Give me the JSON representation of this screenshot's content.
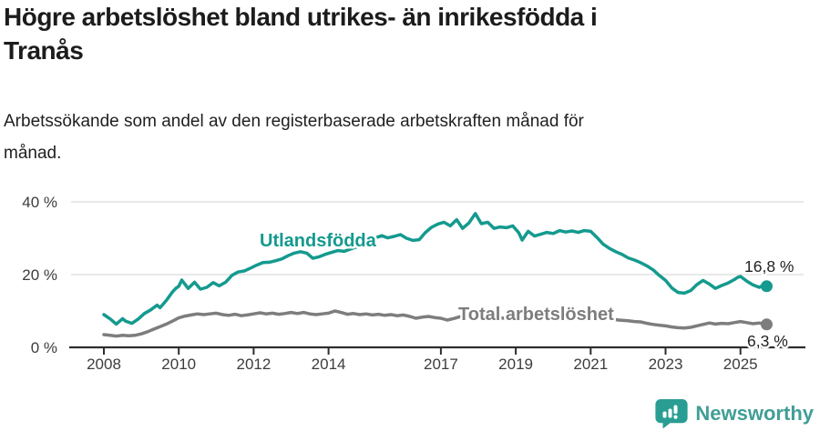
{
  "header": {
    "title": "Högre arbetslöshet bland utrikes- än inrikesfödda i\nTranås",
    "subtitle": "Arbetssökande som andel av den registerbaserade arbetskraften månad för\nmånad."
  },
  "chart_data": {
    "type": "line",
    "title": "Högre arbetslöshet bland utrikes- än inrikesfödda i Tranås",
    "subtitle": "Arbetssökande som andel av den registerbaserade arbetskraften månad för månad.",
    "unit": "%",
    "grid": "horizontal",
    "x_axis": {
      "ticks": [
        2008,
        2010,
        2012,
        2014,
        2017,
        2019,
        2021,
        2023,
        2025
      ],
      "range": [
        2007.1,
        2026.6
      ]
    },
    "y_axis": {
      "ticks": [
        {
          "value": 0,
          "label": "0 %"
        },
        {
          "value": 20,
          "label": "20 %"
        },
        {
          "value": 40,
          "label": "40 %"
        }
      ],
      "range": [
        0,
        44
      ]
    },
    "series": [
      {
        "name": "Utlandsfödda",
        "color": "#149a8e",
        "end_label": "16,8 %",
        "end_value": 16.8,
        "points": [
          [
            2008.0,
            9.0
          ],
          [
            2008.17,
            7.8
          ],
          [
            2008.33,
            6.4
          ],
          [
            2008.5,
            7.9
          ],
          [
            2008.58,
            7.2
          ],
          [
            2008.75,
            6.6
          ],
          [
            2008.92,
            7.8
          ],
          [
            2009.08,
            9.3
          ],
          [
            2009.25,
            10.3
          ],
          [
            2009.42,
            11.6
          ],
          [
            2009.5,
            10.9
          ],
          [
            2009.67,
            12.9
          ],
          [
            2009.83,
            15.2
          ],
          [
            2009.92,
            16.2
          ],
          [
            2010.0,
            16.8
          ],
          [
            2010.08,
            18.5
          ],
          [
            2010.25,
            16.2
          ],
          [
            2010.42,
            17.9
          ],
          [
            2010.58,
            16.0
          ],
          [
            2010.75,
            16.5
          ],
          [
            2010.92,
            17.8
          ],
          [
            2011.08,
            16.9
          ],
          [
            2011.25,
            17.9
          ],
          [
            2011.42,
            19.8
          ],
          [
            2011.58,
            20.7
          ],
          [
            2011.75,
            21.0
          ],
          [
            2011.92,
            21.8
          ],
          [
            2012.08,
            22.6
          ],
          [
            2012.25,
            23.3
          ],
          [
            2012.42,
            23.4
          ],
          [
            2012.58,
            23.8
          ],
          [
            2012.75,
            24.3
          ],
          [
            2012.92,
            25.2
          ],
          [
            2013.08,
            25.9
          ],
          [
            2013.25,
            26.3
          ],
          [
            2013.42,
            25.9
          ],
          [
            2013.58,
            24.5
          ],
          [
            2013.75,
            24.9
          ],
          [
            2013.92,
            25.6
          ],
          [
            2014.08,
            26.1
          ],
          [
            2014.25,
            26.6
          ],
          [
            2014.42,
            26.4
          ],
          [
            2014.58,
            27.0
          ],
          [
            2014.75,
            27.6
          ],
          [
            2014.92,
            28.4
          ],
          [
            2015.08,
            29.2
          ],
          [
            2015.25,
            30.1
          ],
          [
            2015.42,
            30.7
          ],
          [
            2015.58,
            30.1
          ],
          [
            2015.75,
            30.5
          ],
          [
            2015.92,
            31.0
          ],
          [
            2016.08,
            30.0
          ],
          [
            2016.25,
            29.4
          ],
          [
            2016.42,
            29.6
          ],
          [
            2016.58,
            31.5
          ],
          [
            2016.75,
            33.0
          ],
          [
            2016.92,
            33.9
          ],
          [
            2017.08,
            34.4
          ],
          [
            2017.25,
            33.4
          ],
          [
            2017.42,
            35.1
          ],
          [
            2017.58,
            32.7
          ],
          [
            2017.75,
            34.2
          ],
          [
            2017.92,
            36.8
          ],
          [
            2018.08,
            34.0
          ],
          [
            2018.25,
            34.4
          ],
          [
            2018.42,
            32.7
          ],
          [
            2018.58,
            33.1
          ],
          [
            2018.75,
            32.9
          ],
          [
            2018.92,
            33.4
          ],
          [
            2019.08,
            31.5
          ],
          [
            2019.17,
            29.5
          ],
          [
            2019.33,
            31.9
          ],
          [
            2019.5,
            30.6
          ],
          [
            2019.67,
            31.1
          ],
          [
            2019.83,
            31.6
          ],
          [
            2020.0,
            31.3
          ],
          [
            2020.17,
            32.1
          ],
          [
            2020.33,
            31.7
          ],
          [
            2020.5,
            32.0
          ],
          [
            2020.67,
            31.6
          ],
          [
            2020.83,
            32.1
          ],
          [
            2021.0,
            31.9
          ],
          [
            2021.17,
            30.2
          ],
          [
            2021.33,
            28.4
          ],
          [
            2021.5,
            27.2
          ],
          [
            2021.67,
            26.3
          ],
          [
            2021.83,
            25.6
          ],
          [
            2022.0,
            24.6
          ],
          [
            2022.17,
            24.0
          ],
          [
            2022.33,
            23.3
          ],
          [
            2022.5,
            22.4
          ],
          [
            2022.67,
            21.3
          ],
          [
            2022.83,
            19.8
          ],
          [
            2023.0,
            18.4
          ],
          [
            2023.17,
            16.3
          ],
          [
            2023.33,
            15.1
          ],
          [
            2023.5,
            14.9
          ],
          [
            2023.67,
            15.6
          ],
          [
            2023.83,
            17.2
          ],
          [
            2024.0,
            18.4
          ],
          [
            2024.17,
            17.4
          ],
          [
            2024.33,
            16.2
          ],
          [
            2024.5,
            17.0
          ],
          [
            2024.67,
            17.7
          ],
          [
            2024.83,
            18.6
          ],
          [
            2024.92,
            19.2
          ],
          [
            2025.0,
            19.5
          ],
          [
            2025.17,
            18.2
          ],
          [
            2025.33,
            17.2
          ],
          [
            2025.5,
            16.5
          ],
          [
            2025.58,
            16.9
          ],
          [
            2025.7,
            16.8
          ]
        ]
      },
      {
        "name": "Total arbetslöshet",
        "color": "#7d7d7d",
        "end_label": "6,3 %",
        "end_value": 6.3,
        "points": [
          [
            2008.0,
            3.5
          ],
          [
            2008.17,
            3.3
          ],
          [
            2008.33,
            3.1
          ],
          [
            2008.5,
            3.3
          ],
          [
            2008.67,
            3.2
          ],
          [
            2008.83,
            3.3
          ],
          [
            2009.0,
            3.7
          ],
          [
            2009.17,
            4.3
          ],
          [
            2009.33,
            5.0
          ],
          [
            2009.5,
            5.7
          ],
          [
            2009.67,
            6.4
          ],
          [
            2009.83,
            7.2
          ],
          [
            2010.0,
            8.1
          ],
          [
            2010.17,
            8.6
          ],
          [
            2010.33,
            8.9
          ],
          [
            2010.5,
            9.2
          ],
          [
            2010.67,
            9.0
          ],
          [
            2010.83,
            9.2
          ],
          [
            2011.0,
            9.4
          ],
          [
            2011.17,
            9.0
          ],
          [
            2011.33,
            8.8
          ],
          [
            2011.5,
            9.1
          ],
          [
            2011.67,
            8.7
          ],
          [
            2011.83,
            8.9
          ],
          [
            2012.0,
            9.2
          ],
          [
            2012.17,
            9.5
          ],
          [
            2012.33,
            9.2
          ],
          [
            2012.5,
            9.4
          ],
          [
            2012.67,
            9.1
          ],
          [
            2012.83,
            9.3
          ],
          [
            2013.0,
            9.6
          ],
          [
            2013.17,
            9.3
          ],
          [
            2013.33,
            9.6
          ],
          [
            2013.5,
            9.2
          ],
          [
            2013.67,
            9.0
          ],
          [
            2013.83,
            9.2
          ],
          [
            2014.0,
            9.4
          ],
          [
            2014.17,
            10.0
          ],
          [
            2014.33,
            9.6
          ],
          [
            2014.5,
            9.1
          ],
          [
            2014.67,
            9.3
          ],
          [
            2014.83,
            9.0
          ],
          [
            2015.0,
            9.2
          ],
          [
            2015.17,
            8.9
          ],
          [
            2015.33,
            9.1
          ],
          [
            2015.5,
            8.8
          ],
          [
            2015.67,
            9.0
          ],
          [
            2015.83,
            8.7
          ],
          [
            2016.0,
            8.9
          ],
          [
            2016.17,
            8.5
          ],
          [
            2016.33,
            8.0
          ],
          [
            2016.5,
            8.3
          ],
          [
            2016.67,
            8.5
          ],
          [
            2016.83,
            8.2
          ],
          [
            2017.0,
            8.0
          ],
          [
            2017.17,
            7.5
          ],
          [
            2017.33,
            7.9
          ],
          [
            2017.5,
            8.4
          ],
          [
            2017.67,
            8.6
          ],
          [
            2017.83,
            8.5
          ],
          [
            2018.0,
            8.4
          ],
          [
            2018.25,
            8.3
          ],
          [
            2018.5,
            8.1
          ],
          [
            2018.75,
            8.0
          ],
          [
            2019.0,
            8.2
          ],
          [
            2019.25,
            8.3
          ],
          [
            2019.5,
            8.5
          ],
          [
            2019.75,
            8.6
          ],
          [
            2020.0,
            8.9
          ],
          [
            2020.25,
            9.1
          ],
          [
            2020.5,
            8.9
          ],
          [
            2020.75,
            8.7
          ],
          [
            2021.0,
            8.5
          ],
          [
            2021.25,
            8.2
          ],
          [
            2021.5,
            7.9
          ],
          [
            2021.75,
            7.5
          ],
          [
            2022.0,
            7.3
          ],
          [
            2022.17,
            7.1
          ],
          [
            2022.33,
            7.0
          ],
          [
            2022.5,
            6.6
          ],
          [
            2022.67,
            6.3
          ],
          [
            2022.83,
            6.1
          ],
          [
            2023.0,
            5.9
          ],
          [
            2023.17,
            5.6
          ],
          [
            2023.33,
            5.4
          ],
          [
            2023.5,
            5.3
          ],
          [
            2023.67,
            5.5
          ],
          [
            2023.83,
            5.9
          ],
          [
            2024.0,
            6.3
          ],
          [
            2024.17,
            6.7
          ],
          [
            2024.33,
            6.4
          ],
          [
            2024.5,
            6.6
          ],
          [
            2024.67,
            6.5
          ],
          [
            2024.83,
            6.8
          ],
          [
            2025.0,
            7.1
          ],
          [
            2025.17,
            6.8
          ],
          [
            2025.33,
            6.5
          ],
          [
            2025.5,
            6.7
          ],
          [
            2025.7,
            6.3
          ]
        ]
      }
    ]
  },
  "footer": {
    "brand": "Newsworthy",
    "brand_color": "#419e96"
  }
}
